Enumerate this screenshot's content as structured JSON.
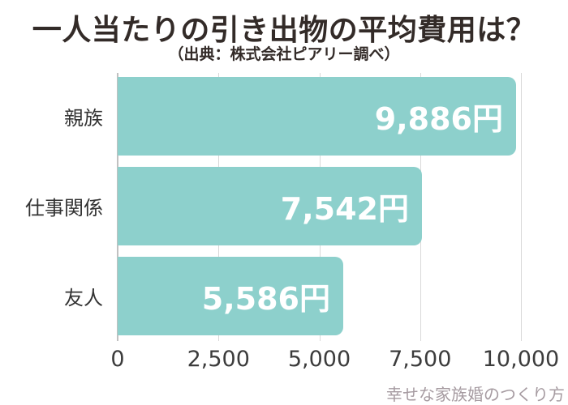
{
  "title": "一人当たりの引き出物の平均費用は？",
  "subtitle": "（出典：株式会社ピアリー調べ）",
  "watermark": "幸せな家族婚のつくり方",
  "colors": {
    "bar": "#8dd0cc",
    "title_text": "#332b28",
    "value_text": "#ffffff",
    "axis_label": "#3c3c3c",
    "gridline": "#d9d9d9",
    "zero_line": "#c1c1c1",
    "watermark_text": "#a69ba1",
    "background": "#ffffff"
  },
  "chart_data": {
    "type": "bar",
    "orientation": "horizontal",
    "title": "一人当たりの引き出物の平均費用は？",
    "subtitle": "（出典：株式会社ピアリー調べ）",
    "categories": [
      "親族",
      "仕事関係",
      "友人"
    ],
    "values": [
      9886,
      7542,
      5586
    ],
    "value_labels": [
      "9,886円",
      "7,542円",
      "5,586円"
    ],
    "unit": "円",
    "xlim": [
      0,
      10000
    ],
    "xticks": [
      0,
      2500,
      5000,
      7500,
      10000
    ],
    "xtick_labels": [
      "0",
      "2,500",
      "5,000",
      "7,500",
      "10,000"
    ],
    "grid": true,
    "legend": false
  }
}
